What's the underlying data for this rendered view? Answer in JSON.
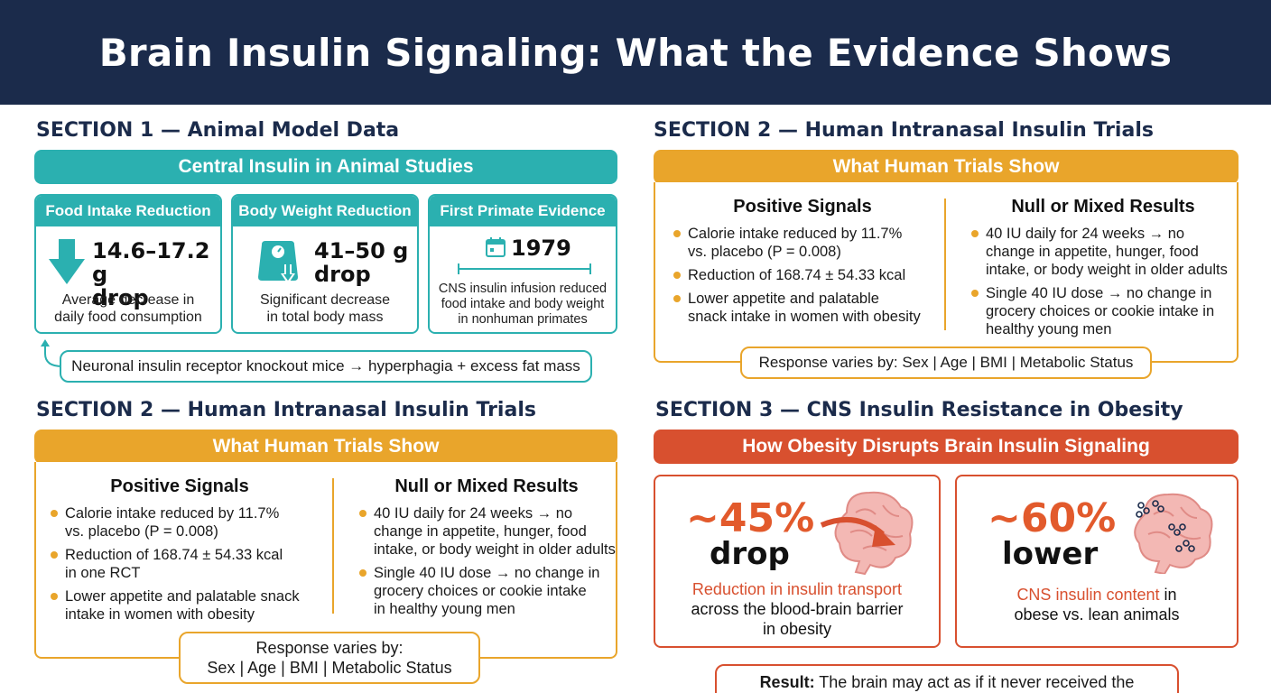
{
  "header": {
    "title": "Brain Insulin Signaling: What the Evidence Shows"
  },
  "section1": {
    "title": "SECTION 1 — Animal Model Data",
    "banner": "Central Insulin in Animal Studies",
    "cards": [
      {
        "head": "Food Intake Reduction",
        "big1": "14.6–17.2 g",
        "big2": "drop",
        "desc1": "Average decrease in",
        "desc2": "daily food consumption",
        "icon": "down-arrow-icon"
      },
      {
        "head": "Body Weight Reduction",
        "big1": "41–50 g",
        "big2": "drop",
        "desc1": "Significant decrease",
        "desc2": "in total body mass",
        "icon": "scale-icon"
      },
      {
        "head": "First Primate Evidence",
        "year": "1979",
        "desc1": "CNS insulin infusion reduced",
        "desc2": "food intake and body weight",
        "desc3": "in nonhuman primates",
        "icon": "calendar-icon"
      }
    ],
    "note": "Neuronal insulin receptor knockout mice → hyperphagia + excess fat mass"
  },
  "section2_top": {
    "title": "SECTION 2 — Human Intranasal Insulin Trials",
    "banner": "What Human Trials Show",
    "positive": {
      "title": "Positive Signals",
      "items": [
        {
          "l1": "Calorie intake reduced by 11.7%",
          "l2": "vs. placebo (P = 0.008)"
        },
        {
          "l1": "Reduction of 168.74 ± 54.33 kcal",
          "l2": ""
        },
        {
          "l1": "Lower appetite and palatable",
          "l2": "snack intake in women with obesity"
        }
      ]
    },
    "null": {
      "title": "Null or Mixed Results",
      "items": [
        {
          "l1": "40 IU daily for 24 weeks → no",
          "l2": "change in appetite, hunger, food",
          "l3": "intake, or body weight in older adults"
        },
        {
          "l1": "Single 40 IU dose → no change in",
          "l2": "grocery choices or cookie intake in",
          "l3": "healthy young men"
        }
      ]
    },
    "note": "Response varies by: Sex | Age | BMI | Metabolic Status"
  },
  "section2_bottom": {
    "title": "SECTION 2 — Human Intranasal Insulin Trials",
    "banner": "What Human Trials Show",
    "positive": {
      "title": "Positive Signals",
      "items": [
        {
          "l1": "Calorie intake reduced by 11.7%",
          "l2": "vs. placebo (P = 0.008)"
        },
        {
          "l1": "Reduction of 168.74 ± 54.33 kcal",
          "l2": "in one RCT"
        },
        {
          "l1": "Lower appetite and palatable snack",
          "l2": "intake in women with obesity"
        }
      ]
    },
    "null": {
      "title": "Null or Mixed Results",
      "items": [
        {
          "l1": "40 IU daily for 24 weeks → no",
          "l2": "change in appetite, hunger, food",
          "l3": "intake, or body weight in older adults"
        },
        {
          "l1": "Single 40 IU dose → no change in",
          "l2": "grocery choices or cookie intake",
          "l3": "in healthy young men"
        }
      ]
    },
    "note1": "Response varies by:",
    "note2": "Sex | Age | BMI | Metabolic Status"
  },
  "section3": {
    "title": "SECTION 3 — CNS Insulin Resistance in Obesity",
    "banner": "How Obesity Disrupts Brain Insulin Signaling",
    "cards": [
      {
        "pct": "~45%",
        "sub": "drop",
        "hl": "Reduction in insulin transport",
        "d2": "across the blood-brain barrier",
        "d3": "in obesity",
        "icon": "brain-arrow-icon"
      },
      {
        "pct": "~60%",
        "sub": "lower",
        "hl": "CNS insulin content",
        "hl_tail": " in",
        "d2": "obese vs. lean animals",
        "icon": "brain-molecules-icon"
      }
    ],
    "result_label": "Result:",
    "result_text": " The brain may act as if it never received the"
  },
  "colors": {
    "navy": "#1b2b4b",
    "teal": "#2bb0b0",
    "amber": "#e9a52b",
    "red": "#d8502f",
    "accent_orange": "#e25a2c"
  }
}
